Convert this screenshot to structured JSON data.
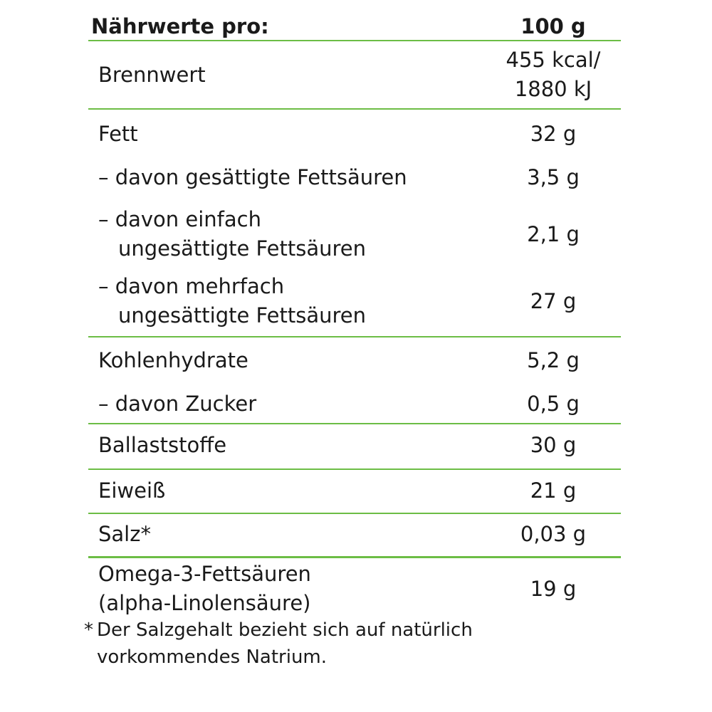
{
  "header": {
    "label": "Nährwerte pro:",
    "value": "100 g"
  },
  "rows": {
    "brennwert": {
      "label": "Brennwert",
      "value_line1": "455 kcal/",
      "value_line2": "1880 kJ"
    },
    "fett": {
      "label": "Fett",
      "value": "32 g"
    },
    "gesaettigte": {
      "label": "– davon gesättigte Fettsäuren",
      "value": "3,5 g"
    },
    "einfach": {
      "label_line1": "– davon einfach",
      "label_line2": "ungesättigte Fettsäuren",
      "value": "2,1 g"
    },
    "mehrfach": {
      "label_line1": "– davon mehrfach",
      "label_line2": "ungesättigte Fettsäuren",
      "value": "27 g"
    },
    "kohlenhydrate": {
      "label": "Kohlenhydrate",
      "value": "5,2 g"
    },
    "zucker": {
      "label": "– davon Zucker",
      "value": "0,5 g"
    },
    "ballaststoffe": {
      "label": "Ballaststoffe",
      "value": "30 g"
    },
    "eiweiss": {
      "label": "Eiweiß",
      "value": "21 g"
    },
    "salz": {
      "label": "Salz*",
      "value": "0,03 g"
    },
    "omega": {
      "label_line1": "Omega-3-Fettsäuren",
      "label_line2": "(alpha-Linolensäure)",
      "value": "19 g"
    }
  },
  "footnote": {
    "star": "*",
    "line1": "Der Salzgehalt bezieht sich auf natürlich",
    "line2": "vorkommendes Natrium."
  },
  "colors": {
    "rule": "#6cbd45",
    "text": "#1a1a1a"
  }
}
